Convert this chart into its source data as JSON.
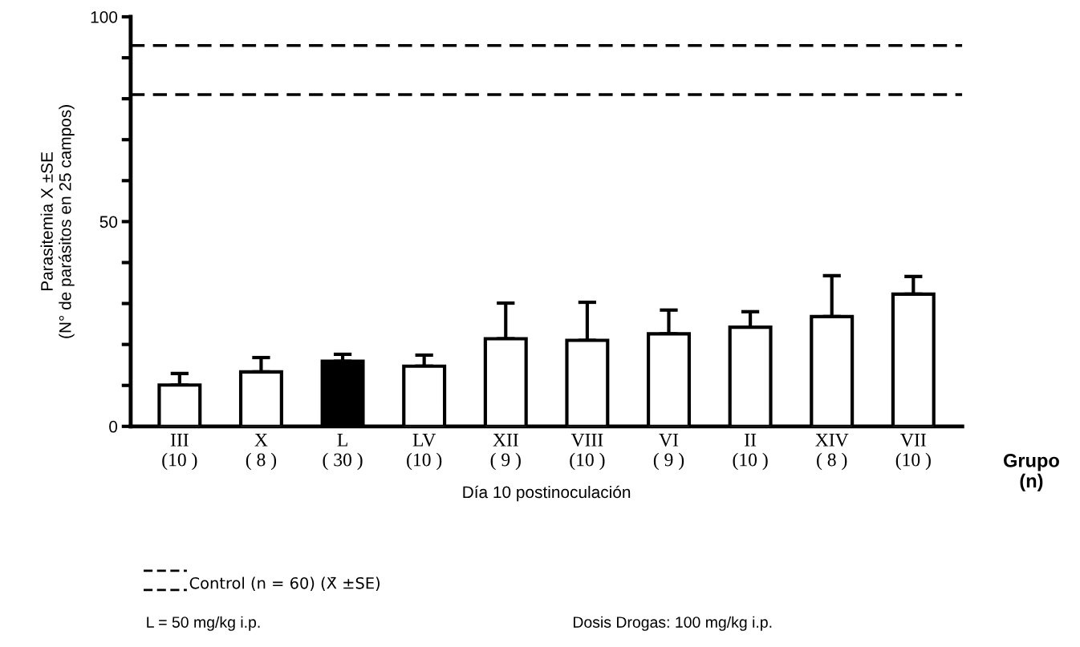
{
  "chart_data": {
    "type": "bar",
    "ylabel": "Parasitemia X ±SE\n(N° de parásitos en 25 campos)",
    "xlabel": "Día 10 postinoculación",
    "categories": [
      "III\n(10 )",
      "X\n( 8 )",
      "L\n( 30 )",
      "LV\n(10 )",
      "XII\n( 9 )",
      "VIII\n(10 )",
      "VI\n( 9 )",
      "II\n(10 )",
      "XIV\n( 8 )",
      "VII\n(10 )"
    ],
    "values": [
      10.1,
      13.3,
      15.9,
      14.7,
      21.4,
      21.0,
      22.6,
      24.2,
      26.8,
      32.3
    ],
    "errors": [
      [
        10.1,
        12.9
      ],
      [
        13.3,
        16.8
      ],
      [
        15.9,
        17.6
      ],
      [
        14.7,
        17.4
      ],
      [
        21.4,
        30.1
      ],
      [
        21.0,
        30.3
      ],
      [
        22.6,
        28.4
      ],
      [
        24.2,
        28.0
      ],
      [
        26.8,
        36.8
      ],
      [
        32.3,
        36.6
      ]
    ],
    "colors": [
      "#ffffff",
      "#ffffff",
      "#000000",
      "#ffffff",
      "#ffffff",
      "#ffffff",
      "#ffffff",
      "#ffffff",
      "#ffffff",
      "#ffffff"
    ],
    "ylim": [
      0,
      100
    ],
    "yticks": [
      0,
      {
        "value": 10,
        "label": null
      },
      {
        "value": 20,
        "label": null
      },
      {
        "value": 30,
        "label": null
      },
      {
        "value": 40,
        "label": null
      },
      50,
      {
        "value": 60,
        "label": null
      },
      {
        "value": 70,
        "label": null
      },
      {
        "value": 80,
        "label": null
      },
      {
        "value": 90,
        "label": null
      },
      100
    ],
    "ref_lines": [
      {
        "axis": "y",
        "value": 93,
        "label": null,
        "color": "#000000",
        "line_style": "dashed"
      },
      {
        "axis": "y",
        "value": 81,
        "label": null,
        "color": "#000000",
        "line_style": "dashed"
      }
    ],
    "grid": false,
    "annotations": [
      "Grupo\n(n)",
      "L = 50 mg/kg i.p.",
      "Dosis Drogas: 100 mg/kg i.p.",
      "Control (n = 60) (X̄ ±SE)"
    ]
  }
}
